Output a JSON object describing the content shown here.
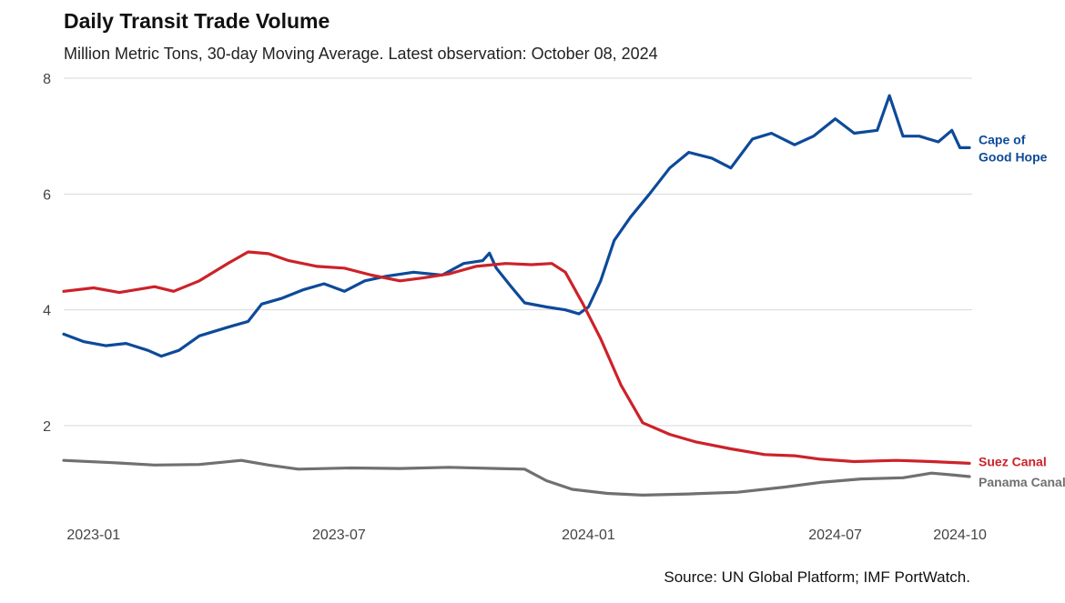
{
  "header": {
    "title": "Daily Transit Trade Volume",
    "subtitle": "Million Metric Tons, 30-day Moving Average. Latest observation: October 08, 2024"
  },
  "source": "Source: UN Global Platform; IMF PortWatch.",
  "chart_data": {
    "type": "line",
    "title": "Daily Transit Trade Volume",
    "ylim": [
      0.5,
      8
    ],
    "y_ticks": [
      2,
      4,
      6,
      8
    ],
    "y_tick_labels": [
      "2",
      "4",
      "6",
      "8"
    ],
    "x_ticks": [
      "2023-01-01",
      "2023-07-01",
      "2024-01-01",
      "2024-07-01",
      "2024-10-01"
    ],
    "x_tick_labels": [
      "2023-01",
      "2023-07",
      "2024-01",
      "2024-07",
      "2024-10"
    ],
    "xlim": [
      "2022-12-10",
      "2024-10-10"
    ],
    "grid": "horizontal",
    "series": [
      {
        "name": "Cape of Good Hope",
        "label_lines": [
          "Cape of",
          "Good Hope"
        ],
        "color": "#0d4a99",
        "points": [
          [
            "2022-12-10",
            3.58
          ],
          [
            "2022-12-25",
            3.45
          ],
          [
            "2023-01-10",
            3.38
          ],
          [
            "2023-01-25",
            3.42
          ],
          [
            "2023-02-10",
            3.3
          ],
          [
            "2023-02-20",
            3.2
          ],
          [
            "2023-03-05",
            3.3
          ],
          [
            "2023-03-20",
            3.55
          ],
          [
            "2023-04-10",
            3.7
          ],
          [
            "2023-04-25",
            3.8
          ],
          [
            "2023-05-05",
            4.1
          ],
          [
            "2023-05-20",
            4.2
          ],
          [
            "2023-06-05",
            4.35
          ],
          [
            "2023-06-20",
            4.45
          ],
          [
            "2023-07-05",
            4.32
          ],
          [
            "2023-07-20",
            4.5
          ],
          [
            "2023-08-05",
            4.58
          ],
          [
            "2023-08-25",
            4.65
          ],
          [
            "2023-09-15",
            4.6
          ],
          [
            "2023-10-01",
            4.8
          ],
          [
            "2023-10-15",
            4.85
          ],
          [
            "2023-10-20",
            4.98
          ],
          [
            "2023-10-25",
            4.72
          ],
          [
            "2023-11-05",
            4.4
          ],
          [
            "2023-11-15",
            4.12
          ],
          [
            "2023-12-01",
            4.05
          ],
          [
            "2023-12-15",
            4.0
          ],
          [
            "2023-12-25",
            3.93
          ],
          [
            "2024-01-01",
            4.05
          ],
          [
            "2024-01-10",
            4.5
          ],
          [
            "2024-01-20",
            5.2
          ],
          [
            "2024-02-01",
            5.6
          ],
          [
            "2024-02-15",
            6.0
          ],
          [
            "2024-03-01",
            6.45
          ],
          [
            "2024-03-15",
            6.72
          ],
          [
            "2024-04-01",
            6.62
          ],
          [
            "2024-04-15",
            6.45
          ],
          [
            "2024-05-01",
            6.95
          ],
          [
            "2024-05-15",
            7.05
          ],
          [
            "2024-06-01",
            6.85
          ],
          [
            "2024-06-15",
            7.0
          ],
          [
            "2024-07-01",
            7.3
          ],
          [
            "2024-07-15",
            7.05
          ],
          [
            "2024-08-01",
            7.1
          ],
          [
            "2024-08-10",
            7.7
          ],
          [
            "2024-08-20",
            7.0
          ],
          [
            "2024-09-01",
            7.0
          ],
          [
            "2024-09-15",
            6.9
          ],
          [
            "2024-09-25",
            7.1
          ],
          [
            "2024-10-01",
            6.8
          ],
          [
            "2024-10-08",
            6.8
          ]
        ]
      },
      {
        "name": "Suez Canal",
        "label_lines": [
          "Suez Canal"
        ],
        "color": "#cc2229",
        "points": [
          [
            "2022-12-10",
            4.32
          ],
          [
            "2023-01-01",
            4.38
          ],
          [
            "2023-01-20",
            4.3
          ],
          [
            "2023-02-15",
            4.4
          ],
          [
            "2023-03-01",
            4.32
          ],
          [
            "2023-03-20",
            4.5
          ],
          [
            "2023-04-10",
            4.8
          ],
          [
            "2023-04-25",
            5.0
          ],
          [
            "2023-05-10",
            4.97
          ],
          [
            "2023-05-25",
            4.85
          ],
          [
            "2023-06-15",
            4.75
          ],
          [
            "2023-07-05",
            4.72
          ],
          [
            "2023-07-25",
            4.6
          ],
          [
            "2023-08-15",
            4.5
          ],
          [
            "2023-09-01",
            4.55
          ],
          [
            "2023-09-20",
            4.62
          ],
          [
            "2023-10-10",
            4.75
          ],
          [
            "2023-11-01",
            4.8
          ],
          [
            "2023-11-20",
            4.78
          ],
          [
            "2023-12-05",
            4.8
          ],
          [
            "2023-12-15",
            4.65
          ],
          [
            "2023-12-28",
            4.1
          ],
          [
            "2024-01-10",
            3.5
          ],
          [
            "2024-01-25",
            2.7
          ],
          [
            "2024-02-10",
            2.05
          ],
          [
            "2024-03-01",
            1.85
          ],
          [
            "2024-03-20",
            1.72
          ],
          [
            "2024-04-15",
            1.6
          ],
          [
            "2024-05-10",
            1.5
          ],
          [
            "2024-06-01",
            1.48
          ],
          [
            "2024-06-20",
            1.42
          ],
          [
            "2024-07-15",
            1.38
          ],
          [
            "2024-08-15",
            1.4
          ],
          [
            "2024-09-10",
            1.38
          ],
          [
            "2024-10-08",
            1.35
          ]
        ]
      },
      {
        "name": "Panama Canal",
        "label_lines": [
          "Panama Canal"
        ],
        "color": "#707070",
        "points": [
          [
            "2022-12-10",
            1.4
          ],
          [
            "2023-01-15",
            1.36
          ],
          [
            "2023-02-15",
            1.32
          ],
          [
            "2023-03-20",
            1.33
          ],
          [
            "2023-04-20",
            1.4
          ],
          [
            "2023-05-10",
            1.32
          ],
          [
            "2023-06-01",
            1.25
          ],
          [
            "2023-07-10",
            1.27
          ],
          [
            "2023-08-15",
            1.26
          ],
          [
            "2023-09-20",
            1.28
          ],
          [
            "2023-10-25",
            1.26
          ],
          [
            "2023-11-15",
            1.25
          ],
          [
            "2023-12-01",
            1.05
          ],
          [
            "2023-12-20",
            0.9
          ],
          [
            "2024-01-15",
            0.83
          ],
          [
            "2024-02-10",
            0.8
          ],
          [
            "2024-03-15",
            0.82
          ],
          [
            "2024-04-20",
            0.85
          ],
          [
            "2024-05-25",
            0.94
          ],
          [
            "2024-06-20",
            1.02
          ],
          [
            "2024-07-20",
            1.08
          ],
          [
            "2024-08-20",
            1.1
          ],
          [
            "2024-09-10",
            1.18
          ],
          [
            "2024-09-25",
            1.15
          ],
          [
            "2024-10-08",
            1.12
          ]
        ]
      }
    ]
  }
}
